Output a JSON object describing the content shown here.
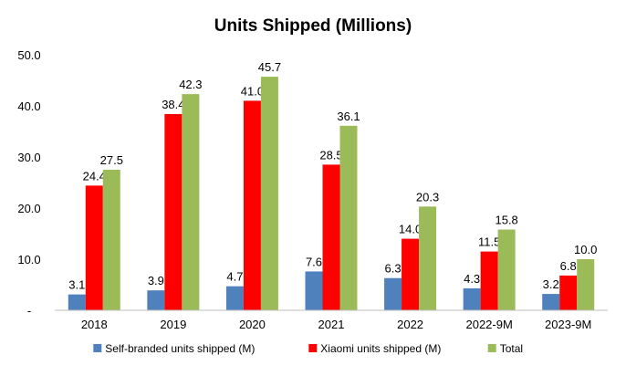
{
  "chart_data": {
    "type": "bar",
    "title": "Units Shipped (Millions)",
    "categories": [
      "2018",
      "2019",
      "2020",
      "2021",
      "2022",
      "2022-9M",
      "2023-9M"
    ],
    "series": [
      {
        "name": "Self-branded units shipped (M)",
        "color": "#4F81BD",
        "values": [
          3.1,
          3.9,
          4.7,
          7.6,
          6.3,
          4.3,
          3.2
        ],
        "labels": [
          "3.1",
          "3.9",
          "4.7",
          "7.6",
          "6.3",
          "4.3",
          "3.2"
        ]
      },
      {
        "name": "Xiaomi units shipped (M)",
        "color": "#FF0000",
        "values": [
          24.4,
          38.4,
          41.0,
          28.5,
          14.0,
          11.5,
          6.8
        ],
        "labels": [
          "24.4",
          "38.4",
          "41.0",
          "28.5",
          "14.0",
          "11.5",
          "6.8"
        ]
      },
      {
        "name": "Total",
        "color": "#9BBB59",
        "values": [
          27.5,
          42.3,
          45.7,
          36.1,
          20.3,
          15.8,
          10.0
        ],
        "labels": [
          "27.5",
          "42.3",
          "45.7",
          "36.1",
          "20.3",
          "15.8",
          "10.0"
        ]
      }
    ],
    "y_ticks": [
      "-",
      "10.0",
      "20.0",
      "30.0",
      "40.0",
      "50.0"
    ],
    "ylim": [
      0,
      50
    ],
    "xlabel": "",
    "ylabel": "",
    "grid": false,
    "legend_position": "bottom"
  }
}
